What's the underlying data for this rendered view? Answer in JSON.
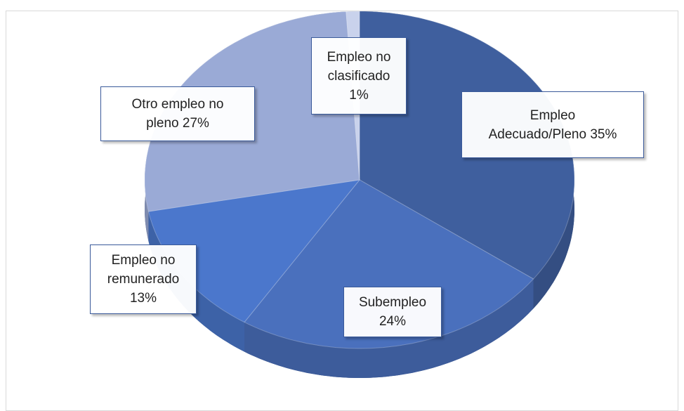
{
  "chart_data": {
    "type": "pie",
    "categories": [
      "Empleo Adecuado/Pleno",
      "Subempleo",
      "Empleo no remunerado",
      "Otro empleo no pleno",
      "Empleo no clasificado"
    ],
    "values": [
      35,
      24,
      13,
      27,
      1
    ],
    "value_labels": [
      "35%",
      "24%",
      "13%",
      "27%",
      "1%"
    ],
    "colors": [
      "#3f5f9e",
      "#4a70bd",
      "#4b77cc",
      "#9aaad6",
      "#c9d2ec"
    ]
  }
}
